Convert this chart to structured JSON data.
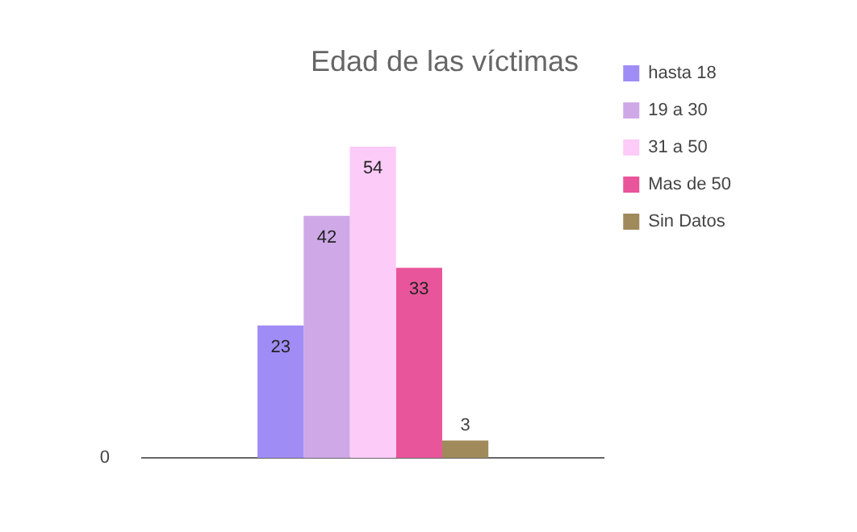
{
  "chart_data": {
    "type": "bar",
    "title": "Edad de las víctimas",
    "categories": [
      null
    ],
    "series": [
      {
        "name": "hasta 18",
        "color": "#a08cf5",
        "values": [
          23
        ]
      },
      {
        "name": "19 a 30",
        "color": "#cfa8e8",
        "values": [
          42
        ]
      },
      {
        "name": "31 a 50",
        "color": "#fccbf8",
        "values": [
          54
        ]
      },
      {
        "name": "Mas de 50",
        "color": "#e8559a",
        "values": [
          33
        ]
      },
      {
        "name": "Sin Datos",
        "color": "#a08a5c",
        "values": [
          3
        ]
      }
    ],
    "annotations": [
      "0"
    ],
    "grid": false,
    "legend": "right",
    "data_labels": true
  }
}
